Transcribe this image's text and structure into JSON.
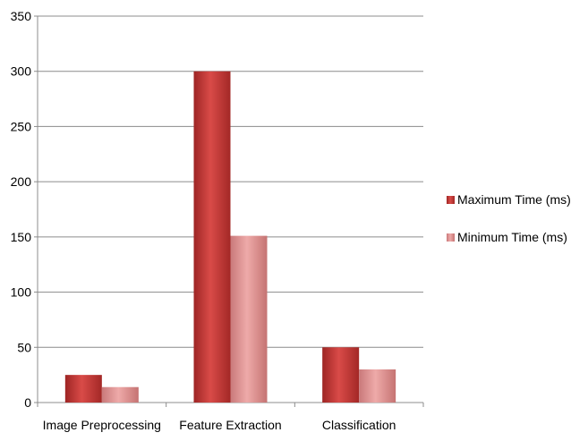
{
  "chart_data": {
    "type": "bar",
    "categories": [
      "Image Preprocessing",
      "Feature Extraction",
      "Classification"
    ],
    "series": [
      {
        "name": "Maximum Time (ms)",
        "values": [
          25,
          300,
          50
        ],
        "color": "#c0302e"
      },
      {
        "name": "Minimum Time (ms)",
        "values": [
          14,
          151,
          30
        ],
        "color": "#dc8c8c"
      }
    ],
    "ylim": [
      0,
      350
    ],
    "yticks": [
      0,
      50,
      100,
      150,
      200,
      250,
      300,
      350
    ],
    "grid": true,
    "legend_position": "right",
    "title": "",
    "xlabel": "",
    "ylabel": ""
  }
}
